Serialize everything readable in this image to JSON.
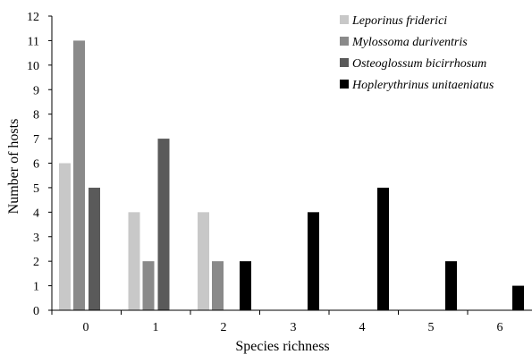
{
  "chart_data": {
    "type": "bar",
    "title": "",
    "xlabel": "Species richness",
    "ylabel": "Number of hosts",
    "categories": [
      "0",
      "1",
      "2",
      "3",
      "4",
      "5",
      "6"
    ],
    "ylim": [
      0,
      12
    ],
    "yticks": [
      "0",
      "1",
      "2",
      "3",
      "4",
      "5",
      "6",
      "7",
      "8",
      "9",
      "10",
      "11",
      "12"
    ],
    "grid": false,
    "legend_position": "top-right",
    "series": [
      {
        "name": "Leporinus friderici",
        "color": "#c8c8c8",
        "values": [
          6,
          4,
          4,
          0,
          0,
          0,
          0
        ]
      },
      {
        "name": "Mylossoma duriventris",
        "color": "#8a8a8a",
        "values": [
          11,
          2,
          2,
          0,
          0,
          0,
          0
        ]
      },
      {
        "name": "Osteoglossum bicirrhosum",
        "color": "#5a5a5a",
        "values": [
          5,
          7,
          0,
          0,
          0,
          0,
          0
        ]
      },
      {
        "name": "Hoplerythrinus unitaeniatus",
        "color": "#000000",
        "values": [
          0,
          0,
          2,
          4,
          5,
          2,
          1
        ]
      }
    ]
  }
}
